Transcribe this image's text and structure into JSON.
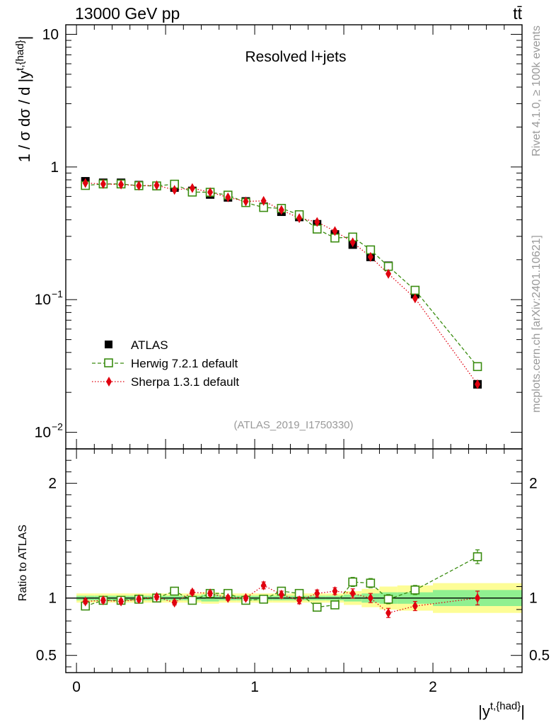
{
  "header": {
    "energy_label": "13000 GeV pp",
    "process_label": "tt̄"
  },
  "side_text": {
    "rivet": "Rivet 4.1.0, ≥ 100k events",
    "mcplots": "mcplots.cern.ch [arXiv:2401.10621]"
  },
  "chart_data": {
    "type": "scatter",
    "title": "Resolved l+jets",
    "analysis_label": "(ATLAS_2019_I1750330)",
    "ylabel_main": "1 / σ dσ / d |y^{t,{had}}|",
    "ylabel_ratio": "Ratio to ATLAS",
    "xlabel": "|y^{t,{had}}|",
    "x_tick_labels": [
      "0",
      "1",
      "2"
    ],
    "main_ytick_labels": [
      "10",
      "1",
      "10^-1",
      "10^-2"
    ],
    "ratio_ytick_labels": [
      "2",
      "1",
      "0.5"
    ],
    "xlim": [
      -0.06,
      2.5
    ],
    "ylim_main": [
      0.0075,
      11.8
    ],
    "ylim_ratio": [
      0.35,
      2.3
    ],
    "x": [
      0.05,
      0.15,
      0.25,
      0.35,
      0.45,
      0.55,
      0.65,
      0.75,
      0.85,
      0.95,
      1.05,
      1.15,
      1.25,
      1.35,
      1.45,
      1.55,
      1.65,
      1.75,
      1.9,
      2.25
    ],
    "x_bin_edges": [
      0.0,
      0.1,
      0.2,
      0.3,
      0.4,
      0.5,
      0.6,
      0.7,
      0.8,
      0.9,
      1.0,
      1.1,
      1.2,
      1.3,
      1.4,
      1.5,
      1.6,
      1.7,
      1.8,
      2.0,
      2.5
    ],
    "band_stat": [
      0.02,
      0.02,
      0.02,
      0.02,
      0.02,
      0.02,
      0.02,
      0.03,
      0.02,
      0.02,
      0.02,
      0.02,
      0.02,
      0.02,
      0.02,
      0.03,
      0.04,
      0.05,
      0.05,
      0.07
    ],
    "band_total": [
      0.04,
      0.04,
      0.04,
      0.04,
      0.04,
      0.04,
      0.04,
      0.05,
      0.04,
      0.04,
      0.04,
      0.04,
      0.04,
      0.04,
      0.04,
      0.06,
      0.08,
      0.1,
      0.11,
      0.13
    ],
    "series": [
      {
        "name": "ATLAS",
        "color": "#000000",
        "marker": "square",
        "values": [
          0.78,
          0.76,
          0.76,
          0.73,
          0.72,
          0.7,
          0.66,
          0.62,
          0.59,
          0.55,
          0.5,
          0.46,
          0.42,
          0.37,
          0.31,
          0.26,
          0.21,
          0.18,
          0.11,
          0.023
        ]
      },
      {
        "name": "Herwig 7.2.1 default",
        "color": "#3a8c10",
        "marker": "open-square",
        "line": "dashed",
        "ratio": [
          0.93,
          0.98,
          0.98,
          0.99,
          1.0,
          1.06,
          0.98,
          1.04,
          1.04,
          0.98,
          0.99,
          1.06,
          1.04,
          0.92,
          0.94,
          1.14,
          1.13,
          0.99,
          1.07,
          1.36
        ],
        "ratio_err": [
          0.02,
          0.02,
          0.02,
          0.02,
          0.02,
          0.02,
          0.02,
          0.02,
          0.02,
          0.02,
          0.02,
          0.03,
          0.03,
          0.03,
          0.03,
          0.04,
          0.04,
          0.04,
          0.04,
          0.06
        ]
      },
      {
        "name": "Sherpa 1.3.1 default",
        "color": "#e0000f",
        "marker": "diamond",
        "line": "dotted",
        "ratio": [
          0.97,
          0.98,
          0.97,
          0.99,
          1.01,
          0.96,
          1.05,
          1.04,
          1.0,
          1.0,
          1.11,
          1.03,
          0.98,
          1.04,
          1.06,
          1.04,
          1.0,
          0.87,
          0.93,
          1.0
        ],
        "ratio_err": [
          0.02,
          0.02,
          0.02,
          0.02,
          0.02,
          0.02,
          0.02,
          0.02,
          0.02,
          0.02,
          0.03,
          0.03,
          0.03,
          0.03,
          0.03,
          0.04,
          0.04,
          0.04,
          0.04,
          0.06
        ]
      }
    ]
  }
}
